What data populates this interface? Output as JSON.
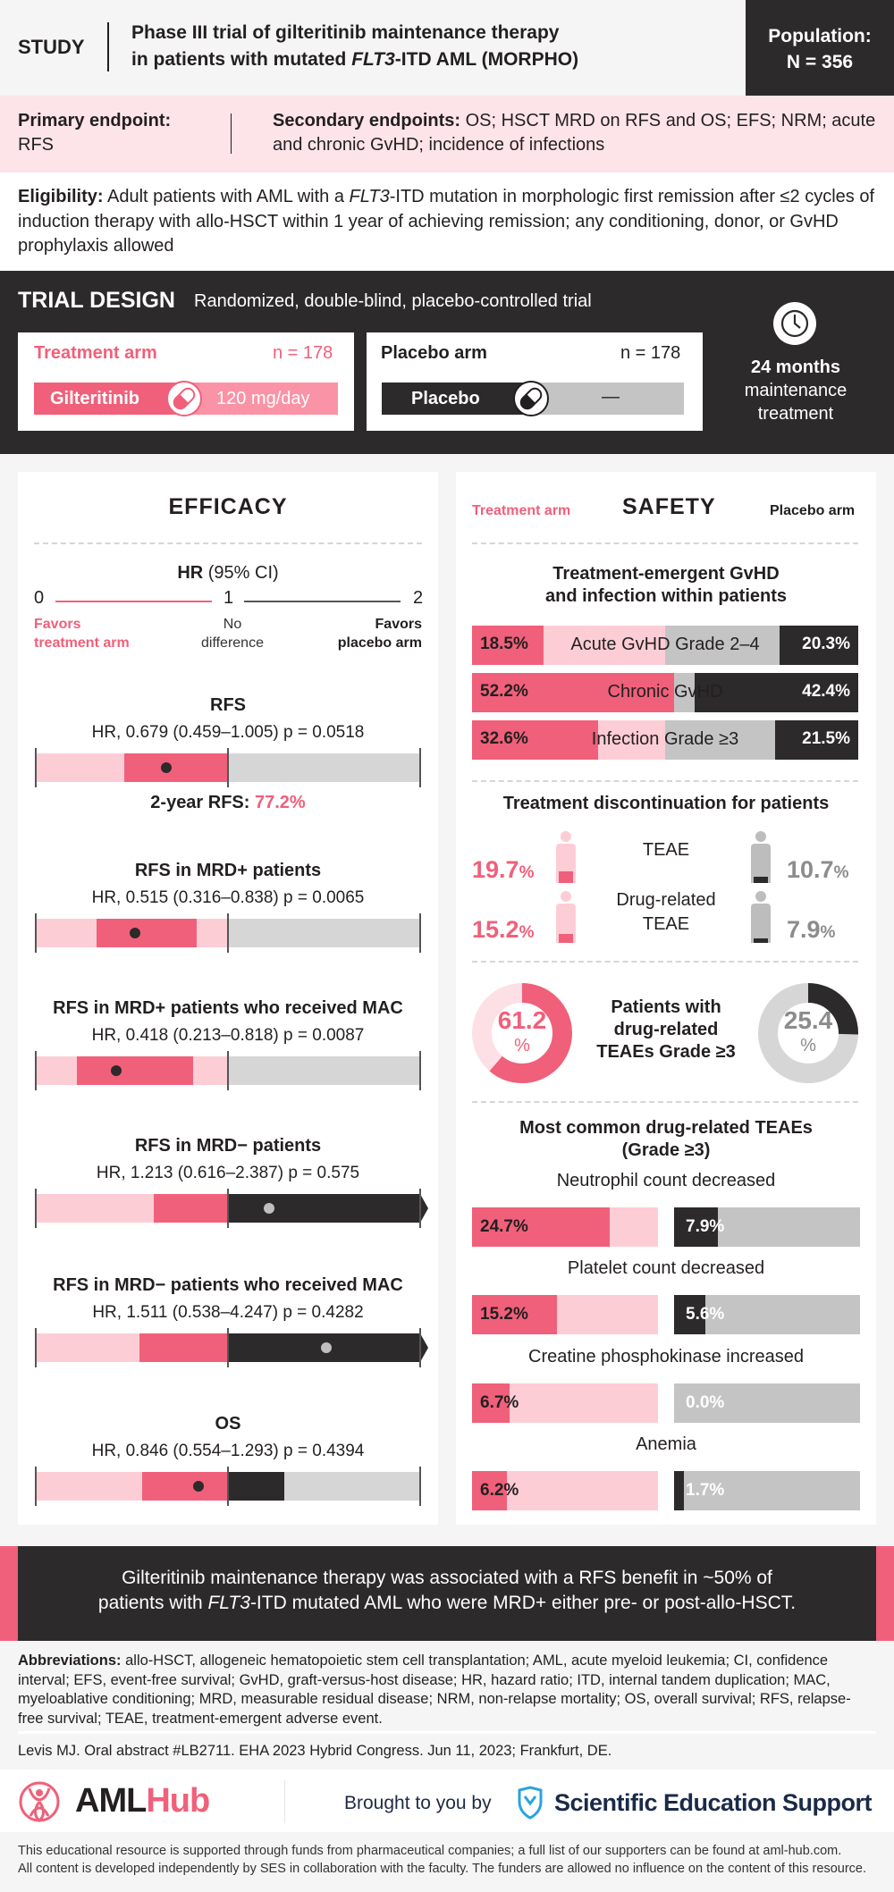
{
  "header": {
    "study_label": "STUDY",
    "title_line1": "Phase III trial of gilteritinib maintenance therapy",
    "title_line2_pre": "in patients with mutated ",
    "title_line2_italic": "FLT3",
    "title_line2_post": "-ITD AML (MORPHO)",
    "population_label": "Population:",
    "population_value": "N = 356"
  },
  "endpoints": {
    "primary_label": "Primary endpoint:",
    "primary_value": "RFS",
    "secondary_label": "Secondary endpoints:",
    "secondary_value": " OS; HSCT MRD on RFS and OS; EFS; NRM; acute and chronic GvHD; incidence of infections"
  },
  "eligibility": {
    "label": "Eligibility:",
    "text_pre": " Adult patients with AML with a ",
    "text_italic": "FLT3",
    "text_post": "-ITD mutation in morphologic first remission after ≤2 cycles of induction therapy with allo-HSCT within 1 year of achieving remission; any conditioning, donor, or GvHD prophylaxis allowed"
  },
  "trial_design": {
    "title": "TRIAL DESIGN",
    "subtitle": "Randomized, double-blind, placebo-controlled trial",
    "treatment_arm": {
      "label": "Treatment arm",
      "n": "n = 178",
      "drug": "Gilteritinib",
      "dose": "120 mg/day"
    },
    "placebo_arm": {
      "label": "Placebo arm",
      "n": "n = 178",
      "drug": "Placebo",
      "dose": "—"
    },
    "duration_bold": "24 months",
    "duration_line2": "maintenance",
    "duration_line3": "treatment",
    "icons": {
      "clock": "clock-icon",
      "pill": "pill-icon"
    }
  },
  "efficacy": {
    "title": "EFFICACY",
    "axis_title_bold": "HR",
    "axis_title_rest": " (95% CI)",
    "axis_ticks": [
      "0",
      "1",
      "2"
    ],
    "favors_treatment_1": "Favors",
    "favors_treatment_2": "treatment arm",
    "no_diff_1": "No",
    "no_diff_2": "difference",
    "favors_placebo_1": "Favors",
    "favors_placebo_2": "placebo arm",
    "rfs_2yr_label": "2-year RFS: ",
    "rfs_2yr_value": "77.2%"
  },
  "safety": {
    "title": "SAFETY",
    "treatment_label": "Treatment arm",
    "placebo_label": "Placebo arm",
    "gvhd_title_1": "Treatment-emergent GvHD",
    "gvhd_title_2": "and infection within patients",
    "discontinuation_title": "Treatment discontinuation for patients",
    "disc_rows": [
      {
        "label": "TEAE",
        "label2": "",
        "treatment": "19.7",
        "placebo": "10.7"
      },
      {
        "label": "Drug-related",
        "label2": "TEAE",
        "treatment": "15.2",
        "placebo": "7.9"
      }
    ],
    "donut_title_1": "Patients with",
    "donut_title_2": "drug-related",
    "donut_title_3": "TEAEs Grade ≥3",
    "donut_treatment": "61.2",
    "donut_placebo": "25.4",
    "pct": "%",
    "common_title_1": "Most common drug-related TEAEs",
    "common_title_2": "(Grade ≥3)"
  },
  "conclusion": {
    "line1": "Gilteritinib maintenance therapy was associated with a RFS benefit in ~50% of",
    "line2_pre": "patients with ",
    "line2_italic": "FLT3",
    "line2_post": "-ITD mutated AML who were MRD+ either pre- or post-allo-HSCT."
  },
  "abbreviations": {
    "label": "Abbreviations:",
    "text": " allo-HSCT, allogeneic hematopoietic stem cell transplantation; AML, acute myeloid leukemia; CI, confidence interval; EFS, event-free survival; GvHD, graft-versus-host disease; HR, hazard ratio; ITD, internal tandem duplication; MAC, myeloablative conditioning; MRD, measurable residual disease; NRM, non-relapse mortality; OS, overall survival; RFS, relapse-free survival; TEAE, treatment-emergent adverse event."
  },
  "reference": "Levis MJ. Oral abstract #LB2711. EHA 2023 Hybrid Congress. Jun 11, 2023; Frankfurt, DE.",
  "footer": {
    "logo_aml": "AML",
    "logo_hub": "Hub",
    "brought_by": "Brought to you by",
    "ses": "Scientific Education Support",
    "funding_1": "This educational resource is supported through funds from pharmaceutical companies; a full list of our supporters can be found at aml-hub.com.",
    "funding_2": "All content is developed independently by SES in collaboration with the faculty. The funders are allowed no influence on the content of this resource."
  },
  "colors": {
    "accent": "#f0607a",
    "accent_light": "#fdcdd6",
    "dark": "#2d2a2b",
    "gray": "#c4c4c4",
    "gray_light": "#d6d6d6"
  },
  "chart_data": [
    {
      "type": "forest",
      "title": "Efficacy HR (95% CI)",
      "xlim": [
        0,
        2
      ],
      "reference_line": 1,
      "rows": [
        {
          "label": "RFS",
          "text": "HR, 0.679 (0.459–1.005) p = 0.0518",
          "hr": 0.679,
          "lo": 0.459,
          "hi": 1.005,
          "p": 0.0518
        },
        {
          "label": "RFS in MRD+ patients",
          "text": "HR, 0.515 (0.316–0.838) p = 0.0065",
          "hr": 0.515,
          "lo": 0.316,
          "hi": 0.838,
          "p": 0.0065
        },
        {
          "label": "RFS in MRD+ patients who received MAC",
          "text": "HR, 0.418 (0.213–0.818) p = 0.0087",
          "hr": 0.418,
          "lo": 0.213,
          "hi": 0.818,
          "p": 0.0087
        },
        {
          "label": "RFS in MRD− patients",
          "text": "HR, 1.213 (0.616–2.387) p = 0.575",
          "hr": 1.213,
          "lo": 0.616,
          "hi": 2.387,
          "p": 0.575
        },
        {
          "label": "RFS in MRD− patients who received MAC",
          "text": "HR, 1.511 (0.538–4.247) p = 0.4282",
          "hr": 1.511,
          "lo": 0.538,
          "hi": 4.247,
          "p": 0.4282
        },
        {
          "label": "OS",
          "text": "HR, 0.846 (0.554–1.293) p = 0.4394",
          "hr": 0.846,
          "lo": 0.554,
          "hi": 1.293,
          "p": 0.4394
        }
      ]
    },
    {
      "type": "bar",
      "title": "Treatment-emergent GvHD and infection within patients",
      "categories": [
        "Acute GvHD Grade 2–4",
        "Chronic GvHD",
        "Infection Grade ≥3"
      ],
      "series": [
        {
          "name": "Treatment arm",
          "values": [
            18.5,
            52.2,
            32.6
          ]
        },
        {
          "name": "Placebo arm",
          "values": [
            20.3,
            42.4,
            21.5
          ]
        }
      ],
      "unit": "%"
    },
    {
      "type": "bar",
      "title": "Treatment discontinuation for patients",
      "categories": [
        "TEAE",
        "Drug-related TEAE"
      ],
      "series": [
        {
          "name": "Treatment arm",
          "values": [
            19.7,
            15.2
          ]
        },
        {
          "name": "Placebo arm",
          "values": [
            10.7,
            7.9
          ]
        }
      ],
      "unit": "%"
    },
    {
      "type": "pie",
      "title": "Patients with drug-related TEAEs Grade ≥3",
      "series": [
        {
          "name": "Treatment arm",
          "values": [
            61.2
          ]
        },
        {
          "name": "Placebo arm",
          "values": [
            25.4
          ]
        }
      ],
      "unit": "%"
    },
    {
      "type": "bar",
      "title": "Most common drug-related TEAEs (Grade ≥3)",
      "categories": [
        "Neutrophil count decreased",
        "Platelet count decreased",
        "Creatine phosphokinase increased",
        "Anemia"
      ],
      "series": [
        {
          "name": "Treatment arm",
          "values": [
            24.7,
            15.2,
            6.7,
            6.2
          ]
        },
        {
          "name": "Placebo arm",
          "values": [
            7.9,
            5.6,
            0.0,
            1.7
          ]
        }
      ],
      "unit": "%"
    }
  ]
}
